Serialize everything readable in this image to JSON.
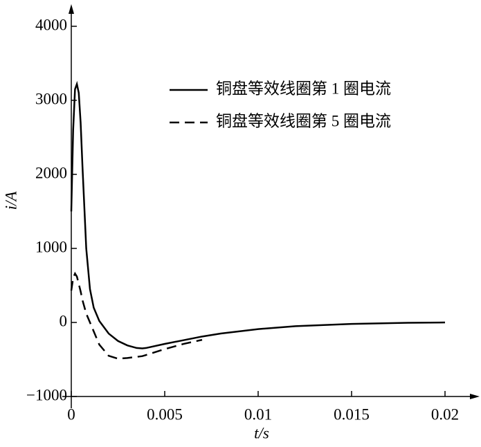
{
  "chart_data": {
    "type": "line",
    "x_label": "t/s",
    "y_label": "i/A",
    "x": [
      0,
      0.0001,
      0.0002,
      0.0003,
      0.0004,
      0.0005,
      0.0006,
      0.0008,
      0.001,
      0.0012,
      0.0015,
      0.002,
      0.0025,
      0.003,
      0.0035,
      0.0038,
      0.004,
      0.005,
      0.006,
      0.007,
      0.008,
      0.01,
      0.012,
      0.015,
      0.018,
      0.02
    ],
    "series": [
      {
        "name": "铜盘等效线圈第 1 圈电流",
        "color": "#000000",
        "dash": "solid",
        "values": [
          1500,
          2600,
          3150,
          3220,
          3100,
          2700,
          2100,
          1000,
          450,
          200,
          20,
          -150,
          -250,
          -310,
          -345,
          -350,
          -345,
          -290,
          -240,
          -190,
          -150,
          -90,
          -50,
          -20,
          -5,
          0
        ]
      },
      {
        "name": "铜盘等效线圈第 5 圈电流",
        "color": "#000000",
        "dash": "dashed",
        "values": [
          430,
          600,
          660,
          620,
          520,
          420,
          300,
          120,
          0,
          -120,
          -300,
          -450,
          -490,
          -480,
          -465,
          -455,
          -440,
          -360,
          -290,
          -235,
          null,
          null,
          null,
          null,
          null,
          null
        ]
      }
    ],
    "xlim": [
      0,
      0.0217
    ],
    "ylim": [
      -1000,
      4260
    ],
    "xticks": [
      0,
      0.005,
      0.01,
      0.015,
      0.02
    ],
    "yticks": [
      {
        "value": -1000,
        "label": "−1000"
      },
      0,
      1000,
      2000,
      3000,
      4000
    ],
    "legend": "upper right"
  }
}
